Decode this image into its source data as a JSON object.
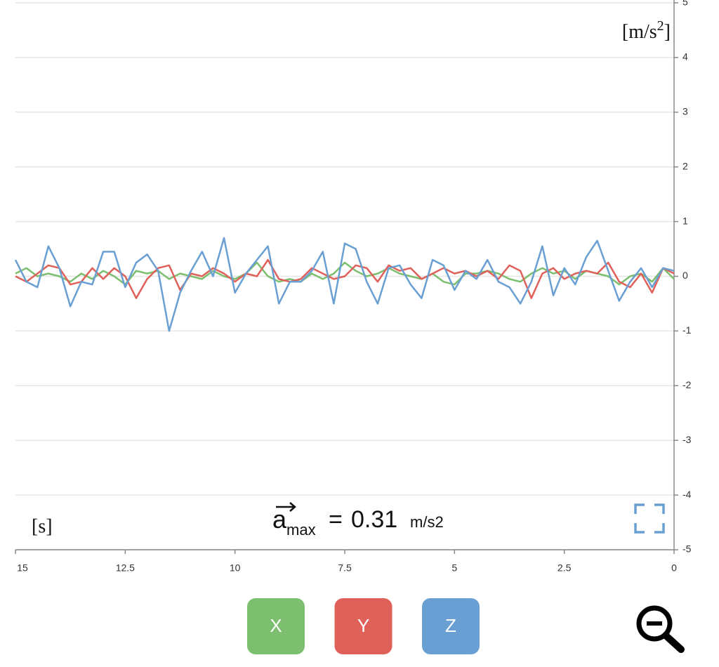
{
  "chart_data": {
    "type": "line",
    "y_unit": {
      "base": "[m/s",
      "sup": "2",
      "close": "]"
    },
    "x_unit": "[s]",
    "annotation": {
      "symbol": "a",
      "subscript": "max",
      "operator": "=",
      "value": 0.31,
      "unit": "m/s2"
    },
    "x": [
      15,
      14.75,
      14.5,
      14.25,
      14,
      13.75,
      13.5,
      13.25,
      13,
      12.75,
      12.5,
      12.25,
      12,
      11.75,
      11.5,
      11.25,
      11,
      10.75,
      10.5,
      10.25,
      10,
      9.75,
      9.5,
      9.25,
      9,
      8.75,
      8.5,
      8.25,
      8,
      7.75,
      7.5,
      7.25,
      7,
      6.75,
      6.5,
      6.25,
      6,
      5.75,
      5.5,
      5.25,
      5,
      4.75,
      4.5,
      4.25,
      4,
      3.75,
      3.5,
      3.25,
      3,
      2.75,
      2.5,
      2.25,
      2,
      1.75,
      1.5,
      1.25,
      1,
      0.75,
      0.5,
      0.25,
      0
    ],
    "series": [
      {
        "name": "X",
        "color": "#7cbf6e",
        "values": [
          0.05,
          0.15,
          0,
          0.05,
          0,
          -0.1,
          0.05,
          -0.05,
          0.1,
          0,
          -0.15,
          0.1,
          0.05,
          0.1,
          -0.05,
          0.05,
          0,
          -0.05,
          0.1,
          0,
          -0.05,
          0.05,
          0.25,
          0,
          -0.1,
          -0.05,
          -0.1,
          0.05,
          -0.05,
          0.05,
          0.25,
          0.1,
          0,
          0.05,
          0.15,
          0.05,
          0,
          -0.05,
          0.05,
          -0.1,
          -0.15,
          0.05,
          0.05,
          0.1,
          0.05,
          -0.05,
          -0.1,
          0.05,
          0.15,
          0.05,
          0.1,
          -0.05,
          0.1,
          0.05,
          0,
          -0.15,
          0,
          0.05,
          -0.1,
          0.15,
          -0.05
        ]
      },
      {
        "name": "Y",
        "color": "#e0605a",
        "values": [
          0,
          -0.1,
          0.05,
          0.2,
          0.15,
          -0.15,
          -0.1,
          0.15,
          -0.05,
          0.15,
          0,
          -0.4,
          -0.05,
          0.15,
          0.2,
          -0.25,
          0.05,
          0,
          0.15,
          0.05,
          -0.1,
          0.05,
          0,
          0.3,
          -0.05,
          -0.1,
          -0.05,
          0.15,
          0.05,
          -0.05,
          0,
          0.2,
          0.15,
          -0.1,
          0.2,
          0.1,
          0.15,
          -0.05,
          0.05,
          0.15,
          0.05,
          0.1,
          0,
          0.1,
          -0.05,
          0.2,
          0.1,
          -0.4,
          0.05,
          0.15,
          -0.05,
          0.05,
          0.1,
          0.05,
          0.25,
          -0.1,
          -0.2,
          0.05,
          -0.3,
          0.15,
          0.05
        ]
      },
      {
        "name": "Z",
        "color": "#6a9fd4",
        "values": [
          0.3,
          -0.1,
          -0.2,
          0.55,
          0.15,
          -0.55,
          -0.1,
          -0.15,
          0.45,
          0.45,
          -0.2,
          0.25,
          0.4,
          0.1,
          -1,
          -0.3,
          0.1,
          0.45,
          0,
          0.7,
          -0.3,
          0.05,
          0.3,
          0.55,
          -0.5,
          -0.1,
          -0.1,
          0.1,
          0.45,
          -0.5,
          0.6,
          0.5,
          -0.1,
          -0.5,
          0.15,
          0.2,
          -0.15,
          -0.4,
          0.3,
          0.2,
          -0.25,
          0.1,
          -0.05,
          0.3,
          -0.1,
          -0.2,
          -0.5,
          -0.1,
          0.55,
          -0.35,
          0.15,
          -0.15,
          0.35,
          0.65,
          0.1,
          -0.45,
          -0.1,
          0.15,
          -0.2,
          0.15,
          0.1
        ]
      }
    ],
    "xlim": [
      15,
      0
    ],
    "xticks": [
      15,
      12.5,
      10,
      7.5,
      5,
      2.5,
      0
    ],
    "ylim": [
      -5,
      5
    ],
    "yticks": [
      -5,
      -4,
      -3,
      -2,
      -1,
      0,
      1,
      2,
      3,
      4,
      5
    ],
    "grid": true
  }
}
